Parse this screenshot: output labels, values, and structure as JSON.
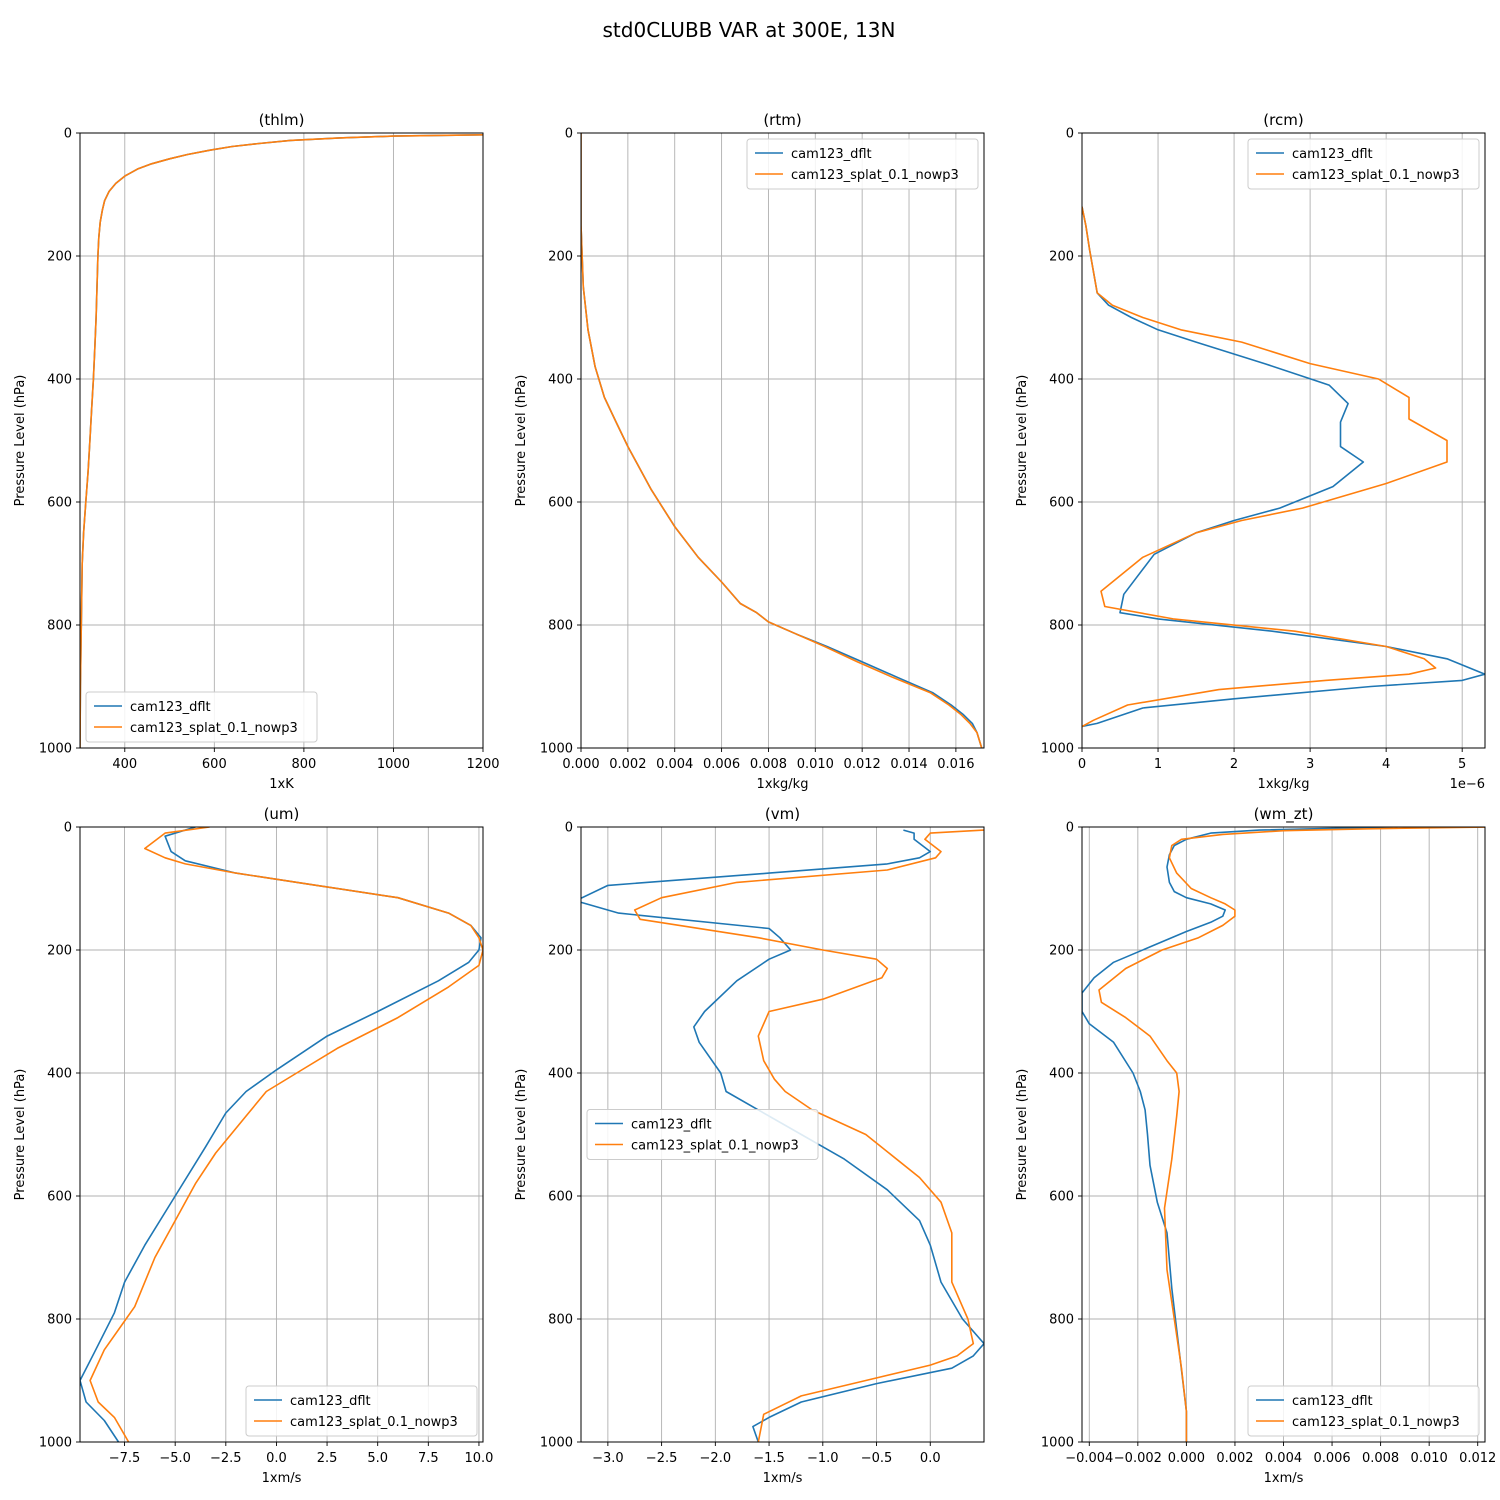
{
  "figure": {
    "title": "std0CLUBB VAR at 300E, 13N"
  },
  "colors": {
    "cam123_dflt": "#1f77b4",
    "cam123_splat_0.1_nowp3": "#ff7f0e"
  },
  "chart_data": [
    {
      "type": "line",
      "name": "thlm",
      "title": "(thlm)",
      "xlabel": "1xK",
      "ylabel": "Pressure Level (hPa)",
      "xlim": [
        300,
        1200
      ],
      "ylim": [
        1000,
        0
      ],
      "y_inverted": true,
      "grid": true,
      "xticks": [
        400,
        600,
        800,
        1000,
        1200
      ],
      "xtick_labels": [
        "400",
        "600",
        "800",
        "1000",
        "1200"
      ],
      "yticks": [
        0,
        200,
        400,
        600,
        800,
        1000
      ],
      "legend": "lower-left",
      "offset_text": "",
      "series": [
        {
          "name": "cam123_dflt",
          "color": "#1f77b4",
          "x": [
            1200,
            1000,
            880,
            770,
            700,
            640,
            590,
            540,
            500,
            460,
            430,
            400,
            380,
            365,
            355,
            350,
            345,
            342,
            340,
            338,
            336,
            333,
            330,
            326,
            322,
            318,
            313,
            308,
            305,
            303,
            301,
            300
          ],
          "y": [
            3,
            5,
            8,
            12,
            17,
            22,
            28,
            35,
            42,
            50,
            58,
            70,
            82,
            95,
            110,
            125,
            145,
            170,
            200,
            250,
            300,
            350,
            400,
            450,
            500,
            550,
            600,
            650,
            700,
            800,
            900,
            1000
          ]
        },
        {
          "name": "cam123_splat_0.1_nowp3",
          "color": "#ff7f0e",
          "x": [
            1200,
            1000,
            880,
            770,
            700,
            640,
            590,
            540,
            500,
            460,
            430,
            400,
            380,
            365,
            355,
            350,
            345,
            342,
            340,
            338,
            336,
            333,
            330,
            326,
            322,
            318,
            313,
            308,
            305,
            303,
            301,
            300
          ],
          "y": [
            3,
            5,
            8,
            12,
            17,
            22,
            28,
            35,
            42,
            50,
            58,
            70,
            82,
            95,
            110,
            125,
            145,
            170,
            200,
            250,
            300,
            350,
            400,
            450,
            500,
            550,
            600,
            650,
            700,
            800,
            900,
            1000
          ]
        }
      ]
    },
    {
      "type": "line",
      "name": "rtm",
      "title": "(rtm)",
      "xlabel": "1xkg/kg",
      "ylabel": "Pressure Level (hPa)",
      "xlim": [
        0,
        0.0172
      ],
      "ylim": [
        1000,
        0
      ],
      "y_inverted": true,
      "grid": true,
      "xticks": [
        0,
        0.002,
        0.004,
        0.006,
        0.008,
        0.01,
        0.012,
        0.014,
        0.016
      ],
      "xtick_labels": [
        "0.000",
        "0.002",
        "0.004",
        "0.006",
        "0.008",
        "0.010",
        "0.012",
        "0.014",
        "0.016"
      ],
      "yticks": [
        0,
        200,
        400,
        600,
        800,
        1000
      ],
      "legend": "upper-right",
      "offset_text": "",
      "series": [
        {
          "name": "cam123_dflt",
          "color": "#1f77b4",
          "x": [
            0,
            0,
            0.0001,
            0.0003,
            0.0006,
            0.001,
            0.0015,
            0.002,
            0.003,
            0.004,
            0.005,
            0.006,
            0.0068,
            0.0075,
            0.008,
            0.0092,
            0.0105,
            0.012,
            0.0135,
            0.015,
            0.0158,
            0.0163,
            0.0167,
            0.0169,
            0.0171
          ],
          "y": [
            0,
            150,
            250,
            320,
            380,
            430,
            470,
            510,
            580,
            640,
            690,
            730,
            765,
            780,
            795,
            815,
            835,
            860,
            885,
            910,
            930,
            945,
            960,
            975,
            1000
          ]
        },
        {
          "name": "cam123_splat_0.1_nowp3",
          "color": "#ff7f0e",
          "x": [
            0,
            0,
            0.0001,
            0.0003,
            0.0006,
            0.001,
            0.0015,
            0.002,
            0.003,
            0.004,
            0.005,
            0.006,
            0.0068,
            0.0075,
            0.008,
            0.0092,
            0.0104,
            0.0118,
            0.0133,
            0.0149,
            0.0157,
            0.0162,
            0.0166,
            0.0169,
            0.0171
          ],
          "y": [
            0,
            150,
            250,
            320,
            380,
            430,
            470,
            510,
            580,
            640,
            690,
            730,
            765,
            780,
            795,
            815,
            835,
            860,
            885,
            910,
            930,
            945,
            960,
            975,
            1000
          ]
        }
      ]
    },
    {
      "type": "line",
      "name": "rcm",
      "title": "(rcm)",
      "xlabel": "1xkg/kg",
      "ylabel": "Pressure Level (hPa)",
      "xlim": [
        0,
        5.3
      ],
      "ylim": [
        1000,
        0
      ],
      "y_inverted": true,
      "grid": true,
      "xticks": [
        0,
        1,
        2,
        3,
        4,
        5
      ],
      "xtick_labels": [
        "0",
        "1",
        "2",
        "3",
        "4",
        "5"
      ],
      "yticks": [
        0,
        200,
        400,
        600,
        800,
        1000
      ],
      "legend": "upper-right",
      "offset_text": "1e−6",
      "series": [
        {
          "name": "cam123_dflt",
          "color": "#1f77b4",
          "x": [
            0,
            0.05,
            0.1,
            0.2,
            0.35,
            0.65,
            1.0,
            1.5,
            2.4,
            3.25,
            3.5,
            3.4,
            3.4,
            3.7,
            3.3,
            2.6,
            2.0,
            1.5,
            0.95,
            0.55,
            0.5,
            1.0,
            2.5,
            4.0,
            4.8,
            5.3,
            5.0,
            3.8,
            2.0,
            0.8,
            0.2,
            0
          ],
          "y": [
            120,
            150,
            190,
            260,
            280,
            300,
            320,
            340,
            375,
            410,
            440,
            470,
            510,
            535,
            575,
            610,
            630,
            650,
            685,
            750,
            780,
            790,
            810,
            835,
            855,
            880,
            890,
            900,
            920,
            935,
            960,
            965
          ]
        },
        {
          "name": "cam123_splat_0.1_nowp3",
          "color": "#ff7f0e",
          "x": [
            0,
            0.05,
            0.1,
            0.2,
            0.4,
            0.8,
            1.3,
            2.1,
            3.0,
            3.9,
            4.3,
            4.3,
            4.8,
            4.8,
            4.0,
            2.9,
            2.1,
            1.5,
            0.8,
            0.25,
            0.3,
            1.2,
            2.8,
            4.0,
            4.5,
            4.65,
            4.3,
            3.2,
            1.8,
            0.6,
            0.15,
            0
          ],
          "y": [
            120,
            150,
            190,
            260,
            280,
            300,
            320,
            340,
            375,
            400,
            430,
            465,
            500,
            535,
            570,
            610,
            630,
            650,
            690,
            745,
            770,
            790,
            810,
            835,
            855,
            870,
            880,
            890,
            905,
            930,
            955,
            965
          ]
        }
      ]
    },
    {
      "type": "line",
      "name": "um",
      "title": "(um)",
      "xlabel": "1xm/s",
      "ylabel": "Pressure Level (hPa)",
      "xlim": [
        -9.7,
        10.2
      ],
      "ylim": [
        1000,
        0
      ],
      "y_inverted": true,
      "grid": true,
      "xticks": [
        -7.5,
        -5.0,
        -2.5,
        0.0,
        2.5,
        5.0,
        7.5,
        10.0
      ],
      "xtick_labels": [
        "−7.5",
        "−5.0",
        "−2.5",
        "0.0",
        "2.5",
        "5.0",
        "7.5",
        "10.0"
      ],
      "yticks": [
        0,
        200,
        400,
        600,
        800,
        1000
      ],
      "legend": "lower-right",
      "offset_text": "",
      "series": [
        {
          "name": "cam123_dflt",
          "color": "#1f77b4",
          "x": [
            -4.0,
            -5.5,
            -5.2,
            -4.5,
            -2.0,
            2.0,
            6.0,
            8.5,
            9.6,
            10.1,
            10.0,
            9.5,
            8.0,
            5.0,
            2.5,
            0.0,
            -1.5,
            -2.5,
            -3.5,
            -5.0,
            -6.5,
            -7.5,
            -8.0,
            -9.0,
            -9.7,
            -9.4,
            -8.5,
            -7.8
          ],
          "y": [
            0,
            15,
            40,
            55,
            75,
            95,
            115,
            140,
            160,
            180,
            200,
            220,
            250,
            300,
            340,
            395,
            430,
            465,
            520,
            600,
            680,
            740,
            790,
            855,
            900,
            935,
            965,
            1000
          ]
        },
        {
          "name": "cam123_splat_0.1_nowp3",
          "color": "#ff7f0e",
          "x": [
            -3.3,
            -5.5,
            -6.5,
            -5.5,
            -4.5,
            -2.0,
            2.0,
            6.0,
            8.5,
            9.6,
            10.0,
            10.2,
            10.0,
            8.5,
            6.0,
            3.0,
            1.0,
            -0.5,
            -1.5,
            -3.0,
            -4.0,
            -5.0,
            -6.0,
            -7.0,
            -8.5,
            -9.2,
            -8.8,
            -8.0,
            -7.3
          ],
          "y": [
            0,
            10,
            35,
            50,
            60,
            75,
            95,
            115,
            140,
            160,
            180,
            200,
            225,
            260,
            310,
            360,
            400,
            430,
            470,
            530,
            580,
            640,
            700,
            780,
            850,
            900,
            935,
            960,
            1000
          ]
        }
      ]
    },
    {
      "type": "line",
      "name": "vm",
      "title": "(vm)",
      "xlabel": "1xm/s",
      "ylabel": "Pressure Level (hPa)",
      "xlim": [
        -3.25,
        0.5
      ],
      "ylim": [
        1000,
        0
      ],
      "y_inverted": true,
      "grid": true,
      "xticks": [
        -3.0,
        -2.5,
        -2.0,
        -1.5,
        -1.0,
        -0.5,
        0.0
      ],
      "xtick_labels": [
        "−3.0",
        "−2.5",
        "−2.0",
        "−1.5",
        "−1.0",
        "−0.5",
        "0.0"
      ],
      "yticks": [
        0,
        200,
        400,
        600,
        800,
        1000
      ],
      "legend": "center-left",
      "offset_text": "",
      "series": [
        {
          "name": "cam123_dflt",
          "color": "#1f77b4",
          "x": [
            -0.25,
            -0.15,
            -0.15,
            0.0,
            -0.1,
            -0.4,
            -1.5,
            -3.0,
            -3.3,
            -2.9,
            -1.5,
            -1.4,
            -1.3,
            -1.5,
            -1.8,
            -2.1,
            -2.2,
            -2.15,
            -1.95,
            -1.9,
            -1.6,
            -1.2,
            -0.8,
            -0.4,
            -0.1,
            0.0,
            0.1,
            0.3,
            0.5,
            0.4,
            0.2,
            -0.5,
            -1.2,
            -1.5,
            -1.65,
            -1.6
          ],
          "y": [
            5,
            10,
            20,
            40,
            50,
            60,
            75,
            95,
            120,
            140,
            165,
            180,
            200,
            215,
            250,
            300,
            325,
            350,
            400,
            430,
            460,
            500,
            540,
            590,
            640,
            680,
            740,
            800,
            840,
            860,
            880,
            905,
            935,
            960,
            975,
            1000
          ]
        },
        {
          "name": "cam123_splat_0.1_nowp3",
          "color": "#ff7f0e",
          "x": [
            0.5,
            0.0,
            -0.05,
            0.1,
            0.05,
            -0.4,
            -1.8,
            -2.5,
            -2.75,
            -2.7,
            -1.6,
            -1.0,
            -0.5,
            -0.4,
            -0.45,
            -1.0,
            -1.5,
            -1.6,
            -1.55,
            -1.45,
            -1.35,
            -1.1,
            -0.6,
            -0.1,
            0.1,
            0.2,
            0.2,
            0.3,
            0.35,
            0.4,
            0.25,
            0.0,
            -0.6,
            -1.2,
            -1.55,
            -1.6
          ],
          "y": [
            5,
            10,
            20,
            40,
            50,
            70,
            90,
            115,
            135,
            150,
            180,
            200,
            215,
            230,
            245,
            280,
            300,
            340,
            380,
            410,
            430,
            460,
            500,
            570,
            610,
            660,
            740,
            780,
            800,
            840,
            860,
            875,
            900,
            925,
            955,
            1000
          ]
        }
      ]
    },
    {
      "type": "line",
      "name": "wm_zt",
      "title": "(wm_zt)",
      "xlabel": "1xm/s",
      "ylabel": "Pressure Level (hPa)",
      "xlim": [
        -0.0043,
        0.0123
      ],
      "ylim": [
        1000,
        0
      ],
      "y_inverted": true,
      "grid": true,
      "xticks": [
        -0.004,
        -0.002,
        0.0,
        0.002,
        0.004,
        0.006,
        0.008,
        0.01,
        0.012
      ],
      "xtick_labels": [
        "−0.004",
        "−0.002",
        "0.000",
        "0.002",
        "0.004",
        "0.006",
        "0.008",
        "0.010",
        "0.012"
      ],
      "yticks": [
        0,
        200,
        400,
        600,
        800,
        1000
      ],
      "legend": "lower-right",
      "offset_text": "",
      "series": [
        {
          "name": "cam123_dflt",
          "color": "#1f77b4",
          "x": [
            0.0085,
            0.003,
            0.001,
            0.0,
            -0.0005,
            -0.0007,
            -0.0008,
            -0.0007,
            -0.0005,
            0.0,
            0.001,
            0.0016,
            0.0015,
            0.001,
            0.0,
            -0.0015,
            -0.003,
            -0.0038,
            -0.0043,
            -0.0043,
            -0.004,
            -0.003,
            -0.0022,
            -0.0019,
            -0.0017,
            -0.0016,
            -0.0015,
            -0.0012,
            -0.0008,
            -0.0006,
            -0.0003,
            0.0,
            0.0
          ],
          "y": [
            0,
            5,
            10,
            20,
            30,
            45,
            65,
            90,
            105,
            115,
            125,
            135,
            145,
            155,
            170,
            195,
            220,
            245,
            270,
            300,
            320,
            350,
            400,
            430,
            460,
            500,
            550,
            610,
            660,
            750,
            850,
            950,
            1000
          ]
        },
        {
          "name": "cam123_splat_0.1_nowp3",
          "color": "#ff7f0e",
          "x": [
            0.0125,
            0.0075,
            0.004,
            0.0015,
            -0.0002,
            -0.0006,
            -0.0007,
            -0.0004,
            0.0002,
            0.001,
            0.0016,
            0.002,
            0.002,
            0.0015,
            0.0005,
            -0.001,
            -0.0025,
            -0.0036,
            -0.0035,
            -0.0025,
            -0.0015,
            -0.0008,
            -0.0004,
            -0.0003,
            -0.0004,
            -0.0006,
            -0.0009,
            -0.0008,
            -0.0005,
            -0.0002,
            0.0,
            0.0
          ],
          "y": [
            0,
            3,
            6,
            12,
            20,
            30,
            50,
            75,
            100,
            115,
            125,
            135,
            145,
            160,
            180,
            200,
            230,
            265,
            285,
            310,
            340,
            380,
            400,
            430,
            470,
            540,
            620,
            720,
            800,
            880,
            950,
            1000
          ]
        }
      ]
    }
  ]
}
